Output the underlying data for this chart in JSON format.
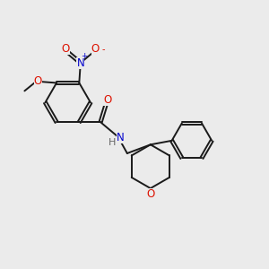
{
  "background_color": "#ebebeb",
  "bond_color": "#1a1a1a",
  "atom_colors": {
    "O": "#dd1100",
    "N": "#0000cc",
    "H": "#666666"
  },
  "figsize": [
    3.0,
    3.0
  ],
  "dpi": 100
}
